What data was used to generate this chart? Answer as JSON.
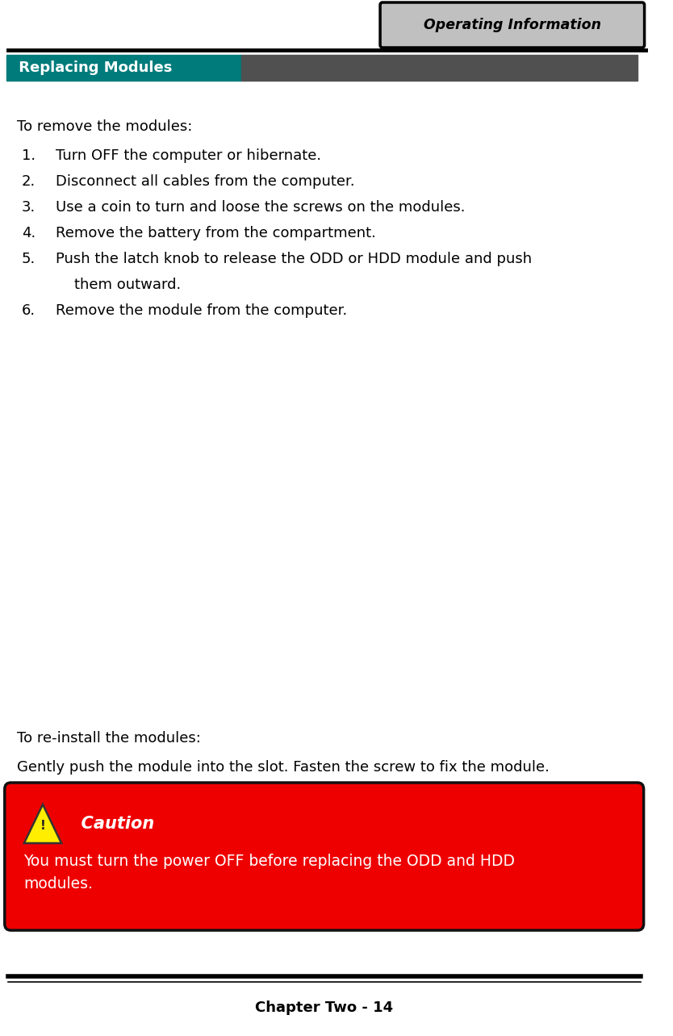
{
  "page_width": 8.34,
  "page_height": 12.84,
  "bg_color": "#ffffff",
  "header_tab_text": "Operating Information",
  "header_tab_bg": "#c0c0c0",
  "header_tab_border": "#000000",
  "section_title": " Replacing Modules",
  "section_title_color": "#ffffff",
  "section_title_bg_left": "#007b7b",
  "section_title_bg_right": "#505050",
  "body_text_color": "#000000",
  "remove_heading": "To remove the modules:",
  "remove_steps": [
    "Turn OFF the computer or hibernate.",
    "Disconnect all cables from the computer.",
    "Use a coin to turn and loose the screws on the modules.",
    "Remove the battery from the compartment.",
    "Push the latch knob to release the ODD or HDD module and push",
    "them outward.",
    "Remove the module from the computer."
  ],
  "reinstall_heading": "To re-install the modules:",
  "reinstall_text": "Gently push the module into the slot. Fasten the screw to fix the module.",
  "caution_bg": "#ee0000",
  "caution_border": "#111111",
  "caution_title": "  Caution",
  "caution_title_color": "#ffffff",
  "caution_body": "You must turn the power OFF before replacing the ODD and HDD\nmodules.",
  "caution_body_color": "#ffffff",
  "footer_text": "Chapter Two - 14",
  "footer_text_color": "#000000"
}
